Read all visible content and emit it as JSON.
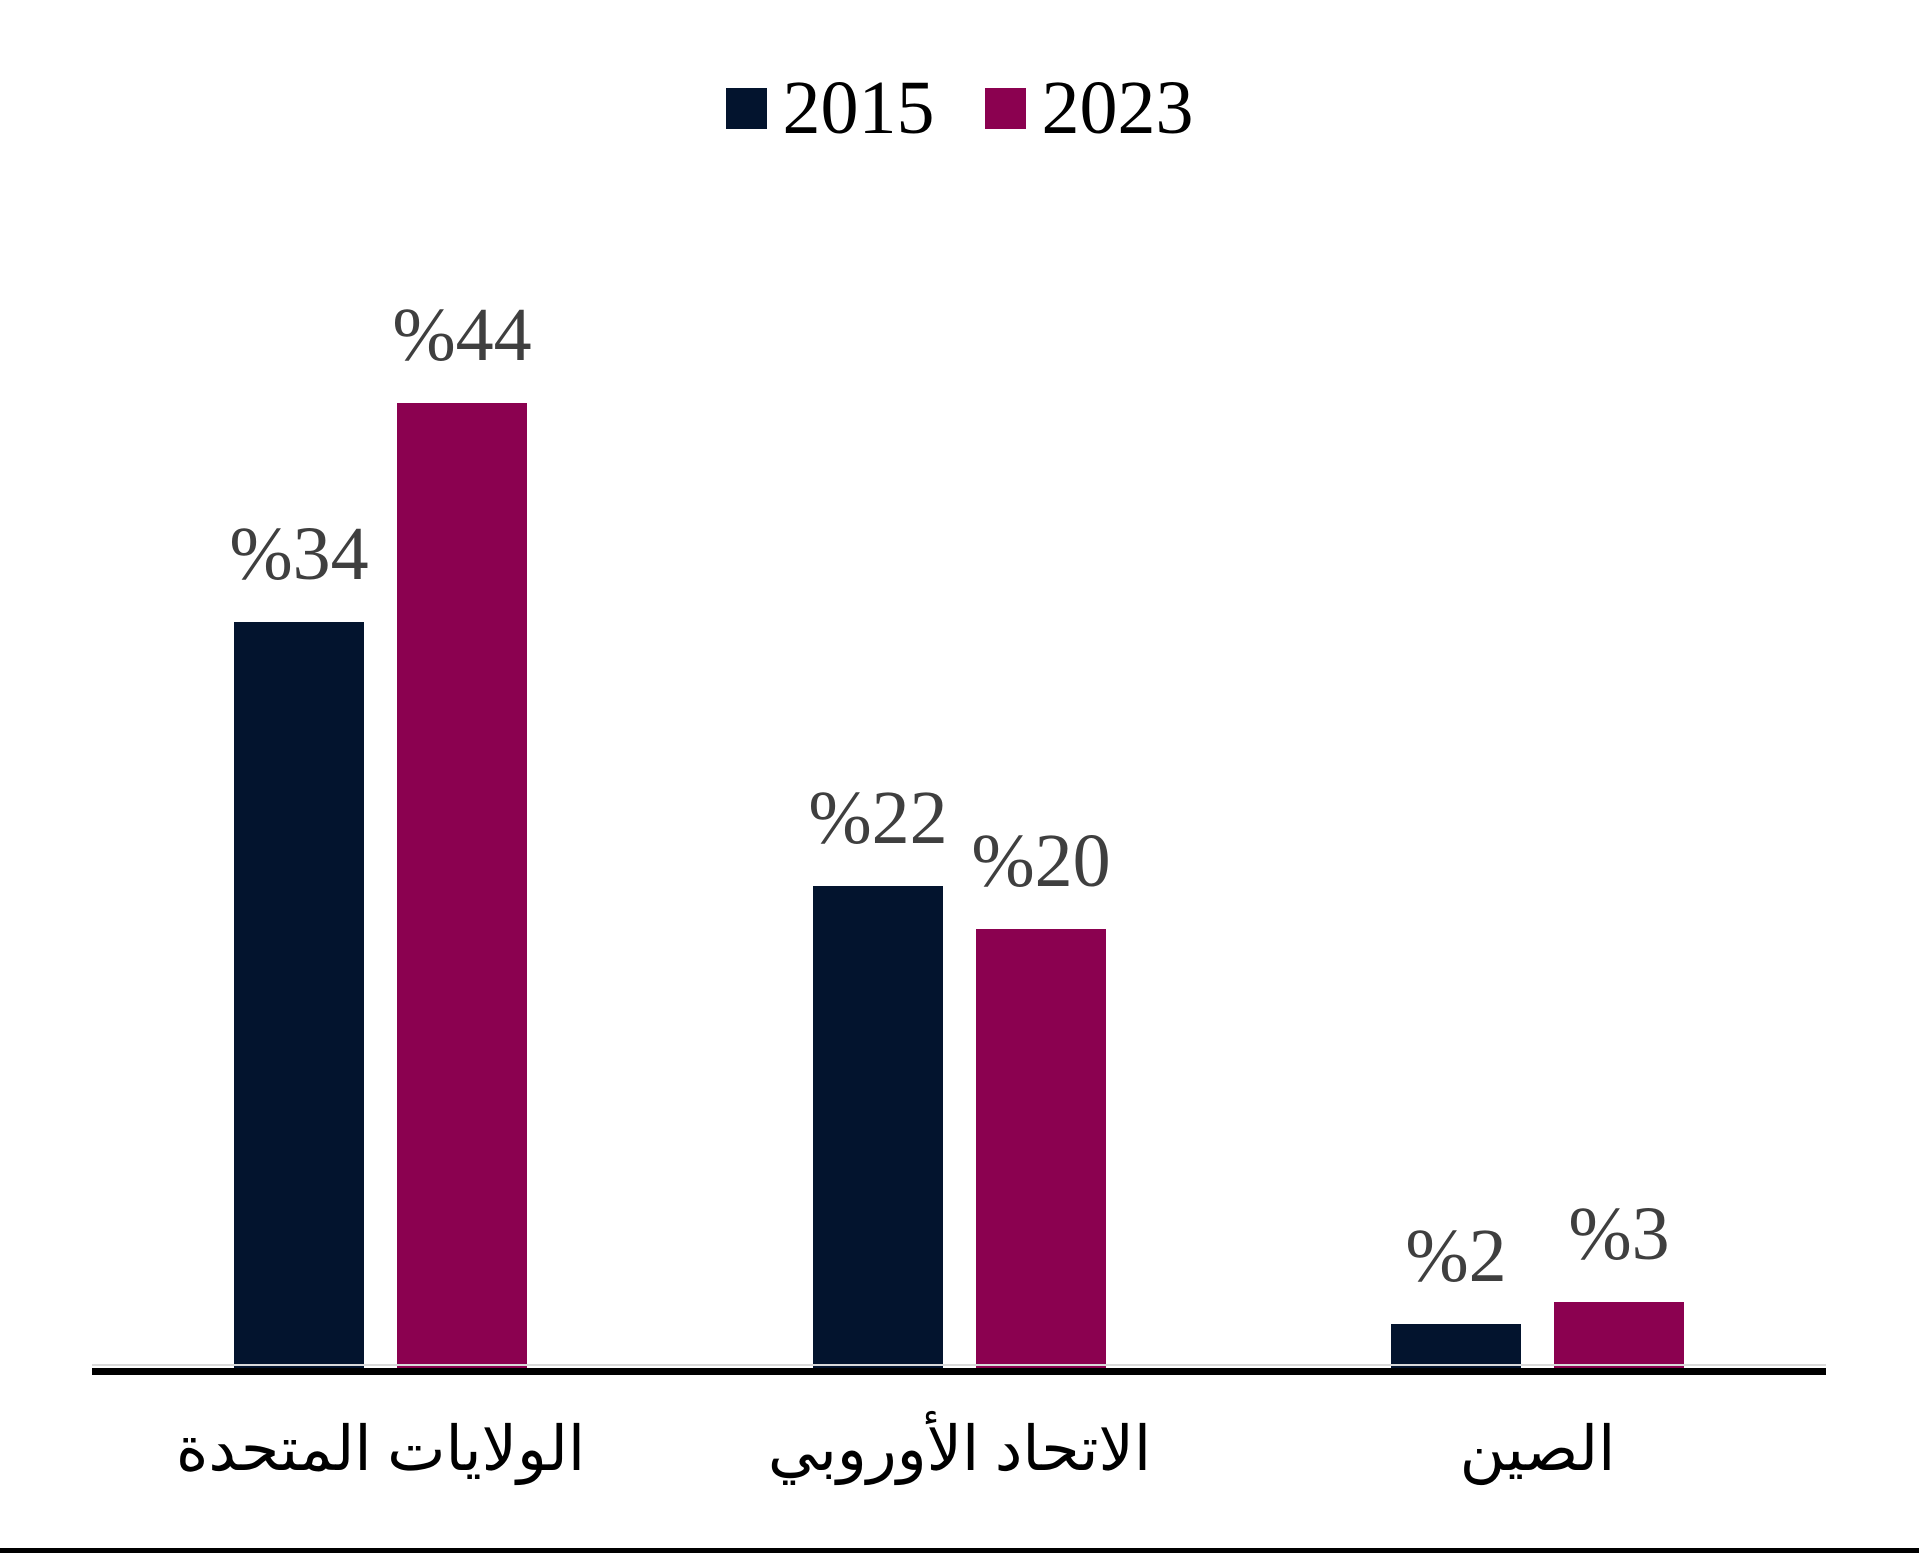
{
  "chart_data": {
    "type": "bar",
    "title": "",
    "xlabel": "",
    "ylabel": "",
    "categories": [
      "الولايات المتحدة",
      "الاتحاد الأوروبي",
      "الصين"
    ],
    "series": [
      {
        "name": "2015",
        "color": "#03142e",
        "values": [
          34,
          22,
          2
        ],
        "value_labels": [
          "%34",
          "%22",
          "%2"
        ]
      },
      {
        "name": "2023",
        "color": "#8b0150",
        "values": [
          44,
          20,
          3
        ],
        "value_labels": [
          "%44",
          "%20",
          "%3"
        ]
      }
    ],
    "value_unit": "percent",
    "ylim": [
      0,
      53
    ],
    "grid": false,
    "legend_position": "top-center",
    "value_label_color": "#3f3f3f",
    "axis_color": "#000000"
  }
}
